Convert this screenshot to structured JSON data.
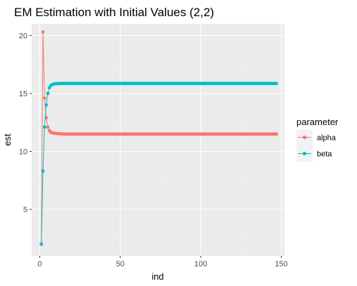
{
  "chart_data": {
    "type": "line",
    "title": "EM Estimation with Initial Values (2,2)",
    "xlabel": "ind",
    "ylabel": "est",
    "xlim": [
      -5,
      152
    ],
    "ylim": [
      1.0,
      21.0
    ],
    "xticks": [
      0,
      50,
      100,
      150
    ],
    "yticks": [
      5,
      10,
      15,
      20
    ],
    "grid": true,
    "legend": {
      "title": "parameter",
      "position": "right"
    },
    "series": [
      {
        "name": "alpha",
        "color": "#F8766D",
        "head": [
          [
            1,
            2.0
          ],
          [
            2,
            20.3
          ],
          [
            3,
            14.6
          ],
          [
            4,
            12.9
          ],
          [
            5,
            12.1
          ],
          [
            6,
            11.8
          ],
          [
            7,
            11.65
          ],
          [
            8,
            11.6
          ],
          [
            9,
            11.57
          ],
          [
            10,
            11.55
          ],
          [
            11,
            11.54
          ],
          [
            12,
            11.53
          ],
          [
            13,
            11.52
          ],
          [
            14,
            11.52
          ],
          [
            15,
            11.51
          ]
        ],
        "tail_from": 16,
        "tail_to": 147,
        "tail_value": 11.5
      },
      {
        "name": "beta",
        "color": "#00BFC4",
        "head": [
          [
            1,
            2.0
          ],
          [
            2,
            8.3
          ],
          [
            3,
            12.1
          ],
          [
            4,
            14.0
          ],
          [
            5,
            15.0
          ],
          [
            6,
            15.5
          ],
          [
            7,
            15.7
          ],
          [
            8,
            15.78
          ],
          [
            9,
            15.82
          ],
          [
            10,
            15.84
          ],
          [
            11,
            15.85
          ],
          [
            12,
            15.85
          ],
          [
            13,
            15.86
          ],
          [
            14,
            15.86
          ],
          [
            15,
            15.86
          ]
        ],
        "tail_from": 16,
        "tail_to": 147,
        "tail_value": 15.86
      }
    ]
  }
}
